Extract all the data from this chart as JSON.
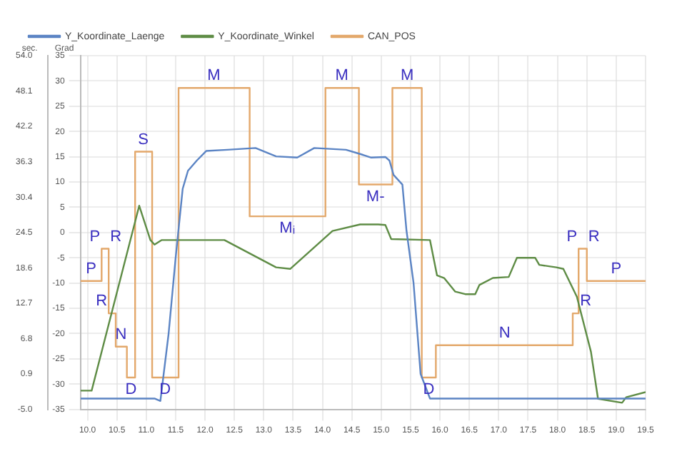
{
  "chart_data": {
    "type": "line",
    "ylabel": "Grad",
    "y2label": "sec.",
    "series": [
      {
        "name": "Y_Koordinate_Laenge",
        "color": "#5b84c4",
        "axis": "y2",
        "x": [
          9.88,
          11.14,
          11.24,
          11.38,
          11.5,
          11.62,
          11.71,
          11.86,
          12.02,
          12.38,
          12.86,
          13.21,
          13.57,
          13.86,
          14.4,
          14.64,
          14.83,
          15.07,
          15.14,
          15.21,
          15.36,
          15.43,
          15.55,
          15.67,
          15.83,
          19.5
        ],
        "values": [
          -3.2,
          -3.2,
          -3.6,
          7.6,
          20.3,
          31.8,
          34.8,
          36.5,
          38.1,
          38.3,
          38.6,
          37.2,
          37.0,
          38.6,
          38.3,
          37.6,
          37.0,
          37.1,
          36.5,
          34.1,
          32.5,
          24.8,
          16.1,
          0.9,
          -3.2,
          -3.2
        ]
      },
      {
        "name": "Y_Koordinate_Winkel",
        "color": "#5e8c45",
        "x": [
          9.88,
          10.07,
          10.88,
          11.07,
          11.14,
          11.26,
          12.33,
          13.21,
          13.45,
          14.17,
          14.64,
          14.95,
          15.07,
          15.17,
          15.83,
          15.95,
          16.07,
          16.26,
          16.43,
          16.6,
          16.67,
          16.9,
          17.17,
          17.31,
          17.62,
          17.69,
          17.98,
          18.1,
          18.33,
          18.57,
          18.69,
          19.1,
          19.17,
          19.5
        ],
        "values": [
          -31.3,
          -31.3,
          5.3,
          -1.5,
          -2.4,
          -1.5,
          -1.5,
          -6.9,
          -7.2,
          0.3,
          1.6,
          1.6,
          1.5,
          -1.3,
          -1.5,
          -8.5,
          -9,
          -11.7,
          -12.2,
          -12.2,
          -10.4,
          -9,
          -8.8,
          -5,
          -5,
          -6.4,
          -6.9,
          -7.2,
          -12.7,
          -23.6,
          -32.9,
          -33.7,
          -32.6,
          -31.6
        ]
      },
      {
        "name": "CAN_POS",
        "color": "#e3a86b",
        "x": [
          9.88,
          10.24,
          10.24,
          10.36,
          10.36,
          10.48,
          10.48,
          10.67,
          10.67,
          10.81,
          10.81,
          11.1,
          11.1,
          11.55,
          11.55,
          12.76,
          12.76,
          14.05,
          14.05,
          14.62,
          14.62,
          15.19,
          15.19,
          15.69,
          15.69,
          15.93,
          15.93,
          18.26,
          18.26,
          18.36,
          18.36,
          18.5,
          18.5,
          19.5
        ],
        "values": [
          -9.6,
          -9.6,
          -3.2,
          -3.2,
          -16,
          -16,
          -22.6,
          -22.6,
          -28.7,
          -28.7,
          16,
          16,
          -28.7,
          -28.7,
          28.6,
          28.6,
          3.2,
          3.2,
          28.6,
          28.6,
          9.5,
          9.5,
          28.6,
          28.6,
          -28.7,
          -28.7,
          -22.3,
          -22.3,
          -16,
          -16,
          -3.2,
          -3.2,
          -9.6,
          -9.6
        ]
      }
    ],
    "xlim": [
      9.88,
      19.5
    ],
    "xticks": [
      {
        "value": 10,
        "label": "10.0"
      },
      10.5,
      {
        "value": 11,
        "label": "11.0"
      },
      11.5,
      {
        "value": 12,
        "label": "12.0"
      },
      12.5,
      {
        "value": 13,
        "label": "13.0"
      },
      13.5,
      {
        "value": 14,
        "label": "14.0"
      },
      14.5,
      {
        "value": 15,
        "label": "15.0"
      },
      15.5,
      {
        "value": 16,
        "label": "16.0"
      },
      16.5,
      {
        "value": 17,
        "label": "17.0"
      },
      17.5,
      {
        "value": 18,
        "label": "18.0"
      },
      18.5,
      {
        "value": 19,
        "label": "19.0"
      },
      19.5
    ],
    "ylim": [
      -35,
      35
    ],
    "yticks": [
      -35,
      -30,
      -25,
      -20,
      -15,
      -10,
      -5,
      0,
      5,
      10,
      15,
      20,
      25,
      30,
      35
    ],
    "y2lim": [
      -5,
      54
    ],
    "y2ticks": [
      {
        "value": -5,
        "label": "-5.0"
      },
      0.9,
      6.8,
      12.7,
      18.6,
      24.5,
      30.4,
      36.3,
      42.2,
      48.1,
      {
        "value": 54,
        "label": "54.0"
      }
    ],
    "annotations": [
      {
        "text": "P",
        "x": 10.06,
        "y": -9.6
      },
      {
        "text": "P",
        "x": 10.24,
        "y": -3.2
      },
      {
        "text": "R",
        "x": 10.36,
        "y": -3.2
      },
      {
        "text": "R",
        "x": 10.36,
        "y": -16
      },
      {
        "text": "N",
        "x": 10.57,
        "y": -22.6
      },
      {
        "text": "D",
        "x": 10.74,
        "y": -28.7
      },
      {
        "text": "S",
        "x": 10.95,
        "y": 16
      },
      {
        "text": "D",
        "x": 11.32,
        "y": -28.7
      },
      {
        "text": "M",
        "x": 12.15,
        "y": 28.6
      },
      {
        "text": "Mᵢ",
        "x": 13.4,
        "y": 3.2
      },
      {
        "text": "M",
        "x": 14.33,
        "y": 28.6
      },
      {
        "text": "M-",
        "x": 14.9,
        "y": 9.5
      },
      {
        "text": "M",
        "x": 15.44,
        "y": 28.6
      },
      {
        "text": "D",
        "x": 15.81,
        "y": -28.7
      },
      {
        "text": "N",
        "x": 17.1,
        "y": -22.3
      },
      {
        "text": "P",
        "x": 18.36,
        "y": -3.2
      },
      {
        "text": "R",
        "x": 18.5,
        "y": -3.2
      },
      {
        "text": "R",
        "x": 18.36,
        "y": -16
      },
      {
        "text": "P",
        "x": 19.0,
        "y": -9.6
      }
    ],
    "grid": true,
    "legend": "top left",
    "marker": "none",
    "line_style": "solid"
  }
}
